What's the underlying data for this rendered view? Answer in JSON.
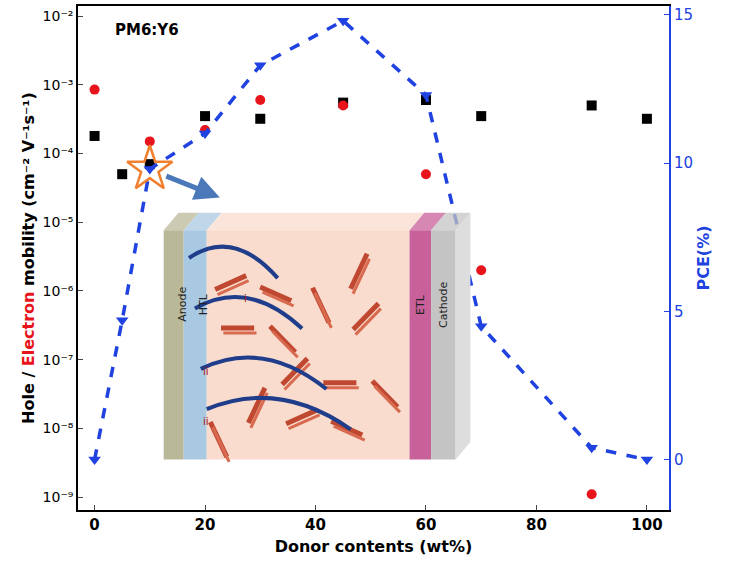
{
  "chart_data": {
    "type": "scatter",
    "annotations": [
      {
        "text": "PM6:Y6"
      }
    ],
    "xlabel": "Donor contents (wt%)",
    "ylabel": "Hole / Electron mobility (cm⁻² V⁻¹s⁻¹)",
    "y2label": "PCE(%)",
    "log": "y",
    "grid": false,
    "xlim": [
      -3,
      104
    ],
    "xticks": [
      0,
      20,
      40,
      60,
      80,
      100
    ],
    "ylim": [
      6.5e-10,
      0.014
    ],
    "yticks": [
      {
        "value": 1e-09,
        "label": "10⁻⁹"
      },
      {
        "value": 1e-08,
        "label": "10⁻⁸"
      },
      {
        "value": 1e-07,
        "label": "10⁻⁷"
      },
      {
        "value": 1e-06,
        "label": "10⁻⁶"
      },
      {
        "value": 1e-05,
        "label": "10⁻⁵"
      },
      {
        "value": 0.0001,
        "label": "10⁻⁴"
      },
      {
        "value": 0.001,
        "label": "10⁻³"
      },
      {
        "value": 0.01,
        "label": "10⁻²"
      }
    ],
    "y2lim": [
      -1.7,
      15.3
    ],
    "y2ticks": [
      0,
      5,
      10,
      15
    ],
    "series": [
      {
        "name": "Hole",
        "type": "scatter",
        "marker": "square",
        "color": "#000000",
        "x": [
          0,
          5,
          10,
          20,
          30,
          45,
          60,
          70,
          90,
          100
        ],
        "values": [
          0.00018,
          5e-05,
          7e-05,
          0.00035,
          0.00032,
          0.00055,
          0.0006,
          0.00035,
          0.0005,
          0.00032
        ]
      },
      {
        "name": "Electron",
        "type": "scatter",
        "marker": "circle",
        "color": "#e8141b",
        "x": [
          0,
          10,
          20,
          30,
          45,
          60,
          70,
          90
        ],
        "values": [
          0.00085,
          0.00015,
          0.00022,
          0.0006,
          0.0005,
          5e-05,
          2e-06,
          1.1e-09
        ]
      },
      {
        "name": "PCE",
        "type": "line",
        "axis": "y2",
        "marker": "triangle-down",
        "line_style": "dash",
        "color": "#2042e0",
        "x": [
          0,
          5,
          10,
          20,
          30,
          45,
          60,
          70,
          90,
          100
        ],
        "values": [
          0,
          4.7,
          9.8,
          11.0,
          13.3,
          14.8,
          12.3,
          4.5,
          0.4,
          0
        ]
      }
    ],
    "highlight": {
      "x": 10,
      "marker": "star",
      "color": "#f08030"
    },
    "inset": {
      "layers": [
        {
          "label": "Anode",
          "color": "#b9b99a"
        },
        {
          "label": "HTL",
          "color": "#a9c9e2"
        },
        {
          "label": null,
          "color": "#f9dccd"
        },
        {
          "label": "ETL",
          "color": "#c8609a"
        },
        {
          "label": "Cathode",
          "color": "#c4c4c4"
        }
      ],
      "notes": [
        {
          "text": "ii"
        },
        {
          "text": "i"
        },
        {
          "text": "ii"
        }
      ]
    }
  }
}
